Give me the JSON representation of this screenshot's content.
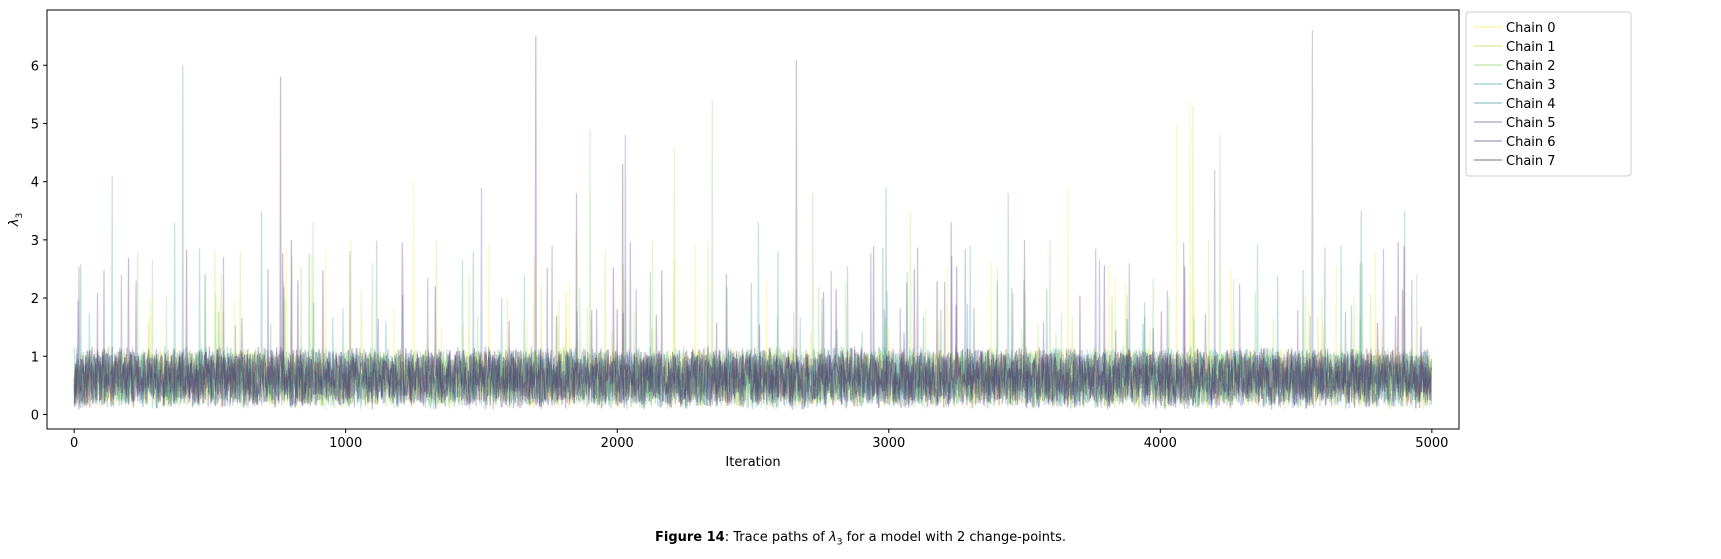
{
  "chart_data": {
    "type": "line",
    "title": "",
    "xlabel": "Iteration",
    "ylabel": "λ3",
    "xlim": [
      -100,
      5100
    ],
    "ylim": [
      -0.25,
      6.95
    ],
    "xticks": [
      0,
      1000,
      2000,
      3000,
      4000,
      5000
    ],
    "yticks": [
      0,
      1,
      2,
      3,
      4,
      5,
      6
    ],
    "n_iterations": 5000,
    "legend_position": "outside top-right",
    "series": [
      {
        "name": "Chain 0",
        "color": "#fde725",
        "seed": 11,
        "spikes": [
          [
            1250,
            4.0
          ],
          [
            3660,
            3.9
          ],
          [
            4060,
            5.0
          ],
          [
            4110,
            5.4
          ],
          [
            1020,
            3.0
          ]
        ]
      },
      {
        "name": "Chain 1",
        "color": "#b5de2b",
        "seed": 23,
        "spikes": [
          [
            2210,
            4.6
          ],
          [
            4120,
            5.3
          ],
          [
            3080,
            3.5
          ],
          [
            1850,
            3.0
          ],
          [
            2130,
            3.0
          ]
        ]
      },
      {
        "name": "Chain 2",
        "color": "#6ece58",
        "seed": 37,
        "spikes": [
          [
            1900,
            4.9
          ],
          [
            2350,
            5.4
          ],
          [
            4220,
            4.8
          ],
          [
            2720,
            3.8
          ],
          [
            880,
            3.3
          ]
        ]
      },
      {
        "name": "Chain 3",
        "color": "#1f9e89",
        "seed": 41,
        "spikes": [
          [
            140,
            4.1
          ],
          [
            370,
            3.3
          ],
          [
            2520,
            3.3
          ],
          [
            3440,
            3.8
          ],
          [
            4900,
            3.5
          ]
        ]
      },
      {
        "name": "Chain 4",
        "color": "#26828e",
        "seed": 53,
        "spikes": [
          [
            400,
            6.0
          ],
          [
            2990,
            3.9
          ],
          [
            4740,
            3.5
          ],
          [
            690,
            3.5
          ],
          [
            1470,
            2.8
          ]
        ]
      },
      {
        "name": "Chain 5",
        "color": "#3e4a89",
        "seed": 67,
        "spikes": [
          [
            4560,
            6.6
          ],
          [
            1500,
            3.9
          ],
          [
            4200,
            4.2
          ],
          [
            2030,
            4.8
          ],
          [
            1760,
            2.9
          ]
        ]
      },
      {
        "name": "Chain 6",
        "color": "#482878",
        "seed": 79,
        "spikes": [
          [
            2660,
            6.1
          ],
          [
            3230,
            3.3
          ],
          [
            1850,
            3.8
          ],
          [
            550,
            2.7
          ],
          [
            3500,
            3.0
          ]
        ]
      },
      {
        "name": "Chain 7",
        "color": "#440154",
        "seed": 97,
        "spikes": [
          [
            1700,
            6.5
          ],
          [
            760,
            5.8
          ],
          [
            2020,
            4.3
          ],
          [
            800,
            3.0
          ],
          [
            1330,
            2.2
          ]
        ]
      }
    ]
  },
  "caption": {
    "label": "Figure 14",
    "text_before": ": Trace paths of ",
    "symbol": "λ",
    "subscript": "3",
    "text_after": " for a model with 2 change-points."
  }
}
